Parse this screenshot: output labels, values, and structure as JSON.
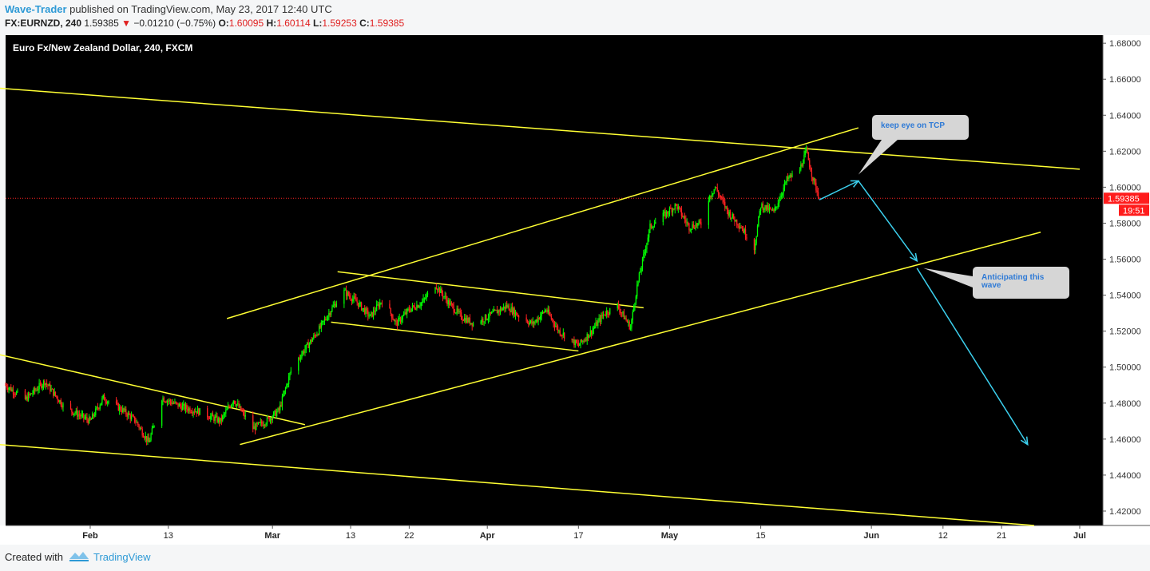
{
  "header": {
    "author": "Wave-Trader",
    "published": " published on TradingView.com, May 23, 2017 12:40 UTC",
    "symbol": "FX:EURNZD, 240",
    "price": "1.59385",
    "change": "−0.01210 (−0.75%)",
    "o_label": "O:",
    "o_value": "1.60095",
    "h_label": "H:",
    "h_value": "1.60114",
    "l_label": "L:",
    "l_value": "1.59253",
    "c_label": "C:",
    "c_value": "1.59385",
    "down_arrow": "▼"
  },
  "footer": {
    "created_with": "Created with",
    "brand": "TradingView",
    "logo_icon": "tradingview-logo-icon"
  },
  "chart_data": {
    "type": "candlestick",
    "title": "Euro Fx/New Zealand Dollar, 240, FXCM",
    "ylim": [
      1.412,
      1.6845
    ],
    "y_ticks": [
      "1.68000",
      "1.66000",
      "1.64000",
      "1.62000",
      "1.60000",
      "1.58000",
      "1.56000",
      "1.54000",
      "1.52000",
      "1.50000",
      "1.48000",
      "1.46000",
      "1.44000",
      "1.42000"
    ],
    "y_tick_values": [
      1.68,
      1.66,
      1.64,
      1.62,
      1.6,
      1.58,
      1.56,
      1.54,
      1.52,
      1.5,
      1.48,
      1.46,
      1.44,
      1.42
    ],
    "x_range": [
      "2017-01-19",
      "2017-07-03"
    ],
    "x_ticks": [
      {
        "label": "Feb",
        "date": "2017-02-01",
        "bold": true
      },
      {
        "label": "13",
        "date": "2017-02-13",
        "bold": false
      },
      {
        "label": "Mar",
        "date": "2017-03-01",
        "bold": true
      },
      {
        "label": "13",
        "date": "2017-03-13",
        "bold": false
      },
      {
        "label": "22",
        "date": "2017-03-22",
        "bold": false
      },
      {
        "label": "Apr",
        "date": "2017-04-03",
        "bold": true
      },
      {
        "label": "17",
        "date": "2017-04-17",
        "bold": false
      },
      {
        "label": "May",
        "date": "2017-05-01",
        "bold": true
      },
      {
        "label": "15",
        "date": "2017-05-15",
        "bold": false
      },
      {
        "label": "Jun",
        "date": "2017-06-01",
        "bold": true
      },
      {
        "label": "12",
        "date": "2017-06-12",
        "bold": false
      },
      {
        "label": "21",
        "date": "2017-06-21",
        "bold": false
      },
      {
        "label": "Jul",
        "date": "2017-07-03",
        "bold": true
      }
    ],
    "last_price": 1.59385,
    "last_price_label": "1.59385",
    "countdown_label": "19:51",
    "price_path": [
      [
        "2017-01-19",
        1.49
      ],
      [
        "2017-01-22",
        1.482
      ],
      [
        "2017-01-25",
        1.492
      ],
      [
        "2017-01-28",
        1.478
      ],
      [
        "2017-02-01",
        1.47
      ],
      [
        "2017-02-03",
        1.483
      ],
      [
        "2017-02-06",
        1.476
      ],
      [
        "2017-02-08",
        1.47
      ],
      [
        "2017-02-10",
        1.458
      ],
      [
        "2017-02-12",
        1.483
      ],
      [
        "2017-02-15",
        1.478
      ],
      [
        "2017-02-18",
        1.475
      ],
      [
        "2017-02-21",
        1.47
      ],
      [
        "2017-02-23",
        1.482
      ],
      [
        "2017-02-26",
        1.466
      ],
      [
        "2017-02-28",
        1.47
      ],
      [
        "2017-03-02",
        1.476
      ],
      [
        "2017-03-04",
        1.5
      ],
      [
        "2017-03-06",
        1.51
      ],
      [
        "2017-03-08",
        1.52
      ],
      [
        "2017-03-10",
        1.532
      ],
      [
        "2017-03-12",
        1.542
      ],
      [
        "2017-03-14",
        1.536
      ],
      [
        "2017-03-16",
        1.528
      ],
      [
        "2017-03-18",
        1.538
      ],
      [
        "2017-03-20",
        1.524
      ],
      [
        "2017-03-22",
        1.532
      ],
      [
        "2017-03-24",
        1.536
      ],
      [
        "2017-03-26",
        1.546
      ],
      [
        "2017-03-28",
        1.536
      ],
      [
        "2017-03-30",
        1.528
      ],
      [
        "2017-04-01",
        1.524
      ],
      [
        "2017-04-04",
        1.53
      ],
      [
        "2017-04-06",
        1.534
      ],
      [
        "2017-04-08",
        1.528
      ],
      [
        "2017-04-10",
        1.524
      ],
      [
        "2017-04-12",
        1.532
      ],
      [
        "2017-04-14",
        1.52
      ],
      [
        "2017-04-17",
        1.512
      ],
      [
        "2017-04-19",
        1.52
      ],
      [
        "2017-04-21",
        1.53
      ],
      [
        "2017-04-23",
        1.534
      ],
      [
        "2017-04-25",
        1.522
      ],
      [
        "2017-04-26",
        1.545
      ],
      [
        "2017-04-28",
        1.578
      ],
      [
        "2017-04-30",
        1.584
      ],
      [
        "2017-05-02",
        1.59
      ],
      [
        "2017-05-04",
        1.578
      ],
      [
        "2017-05-06",
        1.58
      ],
      [
        "2017-05-07",
        1.594
      ],
      [
        "2017-05-08",
        1.6
      ],
      [
        "2017-05-10",
        1.586
      ],
      [
        "2017-05-12",
        1.578
      ],
      [
        "2017-05-14",
        1.566
      ],
      [
        "2017-05-15",
        1.59
      ],
      [
        "2017-05-17",
        1.586
      ],
      [
        "2017-05-19",
        1.604
      ],
      [
        "2017-05-21",
        1.61
      ],
      [
        "2017-05-22",
        1.62
      ],
      [
        "2017-05-23",
        1.605
      ],
      [
        "2017-05-24",
        1.594
      ]
    ],
    "trend_lines": [
      {
        "from": [
          "2017-01-18",
          1.655
        ],
        "to": [
          "2017-07-03",
          1.61
        ]
      },
      {
        "from": [
          "2017-01-18",
          1.457
        ],
        "to": [
          "2017-06-26",
          1.412
        ]
      },
      {
        "from": [
          "2017-01-18",
          1.507
        ],
        "to": [
          "2017-03-06",
          1.468
        ]
      },
      {
        "from": [
          "2017-02-22",
          1.527
        ],
        "to": [
          "2017-05-30",
          1.633
        ]
      },
      {
        "from": [
          "2017-02-24",
          1.457
        ],
        "to": [
          "2017-06-27",
          1.575
        ]
      },
      {
        "from": [
          "2017-03-11",
          1.553
        ],
        "to": [
          "2017-04-27",
          1.533
        ]
      },
      {
        "from": [
          "2017-03-10",
          1.525
        ],
        "to": [
          "2017-04-17",
          1.509
        ]
      }
    ],
    "projection_arrows": [
      {
        "from": [
          "2017-05-24",
          1.593
        ],
        "to": [
          "2017-05-30",
          1.6035
        ]
      },
      {
        "from": [
          "2017-05-30",
          1.6035
        ],
        "to": [
          "2017-06-08",
          1.559
        ]
      },
      {
        "from": [
          "2017-06-08",
          1.555
        ],
        "to": [
          "2017-06-25",
          1.457
        ]
      }
    ],
    "annotations": [
      {
        "text": "keep eye on TCP",
        "anchor": [
          "2017-05-30",
          1.607
        ]
      },
      {
        "text": "Anticipating this wave",
        "anchor": [
          "2017-06-09",
          1.555
        ]
      }
    ],
    "colors": {
      "background": "#000000",
      "up": "#00ff00",
      "down": "#ff2222",
      "trend": "#ffff33",
      "arrow": "#3cd0ee",
      "price_line": "#ff2222",
      "callout": "#d6d6d6",
      "callout_text": "#2e7ad6"
    }
  }
}
